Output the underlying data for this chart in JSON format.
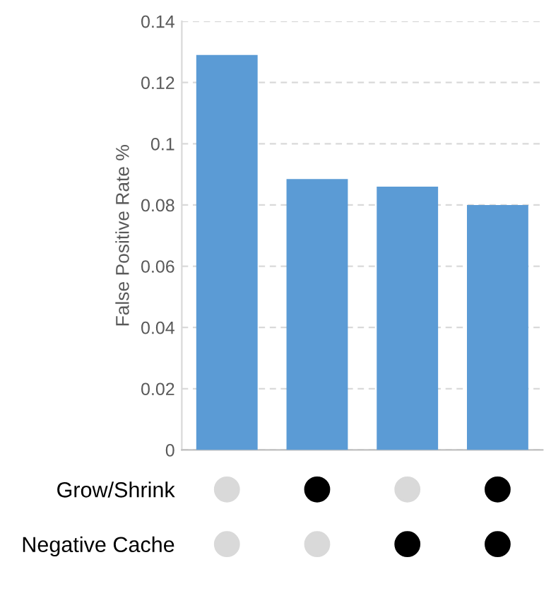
{
  "chart_data": [
    {
      "type": "bar",
      "ylabel": "False Positive Rate %",
      "categories": [
        null,
        null,
        null,
        null
      ],
      "values": [
        0.129,
        0.0885,
        0.086,
        0.08
      ],
      "color": "#5b9bd5",
      "ylim": [
        0,
        0.14
      ],
      "yticks": [
        0,
        0.02,
        0.04,
        0.06,
        0.08,
        0.1,
        0.12,
        0.14
      ],
      "grid": "y"
    },
    {
      "type": "other",
      "annotations": [
        "Grow/Shrink",
        "Negative Cache"
      ],
      "colors": [
        [
          "#d9d9d9",
          "#000000",
          "#d9d9d9",
          "#000000"
        ],
        [
          "#d9d9d9",
          "#d9d9d9",
          "#000000",
          "#000000"
        ]
      ]
    }
  ]
}
